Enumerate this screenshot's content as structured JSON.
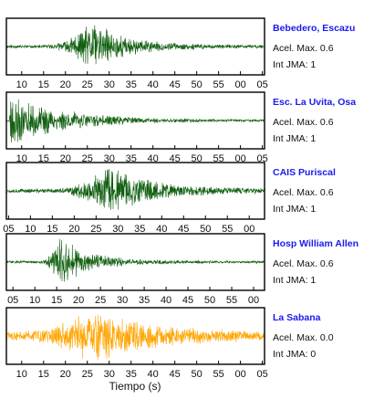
{
  "colors": {
    "trace_default": "#0f5e0f",
    "trace_highlight": "#ffa500",
    "station_name": "#1a1aee",
    "frame": "#000000"
  },
  "x_axis_label": "Tiempo (s)",
  "chart_data": [
    {
      "type": "line",
      "station": "Bebedero, Escazu",
      "accel_label": "Acel. Max. 0.6",
      "intensity_label": "Int JMA: 1",
      "tick_labels": [
        "10",
        "15",
        "20",
        "25",
        "30",
        "35",
        "40",
        "45",
        "50",
        "55",
        "00",
        "05"
      ],
      "xlim_seconds": [
        6.5,
        65.5
      ],
      "trace_color": "trace_default",
      "signal": {
        "onset": 14,
        "peak_time": 26,
        "peak_amplitude": 0.92,
        "background": 0.06,
        "decay": 8,
        "seed": 11
      }
    },
    {
      "type": "line",
      "station": "Esc. La Uvita, Osa",
      "accel_label": "Acel. Max. 0.6",
      "intensity_label": "Int JMA: 1",
      "tick_labels": [
        "10",
        "15",
        "20",
        "25",
        "30",
        "35",
        "40",
        "45",
        "50",
        "55",
        "00",
        "05"
      ],
      "xlim_seconds": [
        6.5,
        65.5
      ],
      "trace_color": "trace_default",
      "signal": {
        "onset": 7,
        "peak_time": 7.5,
        "peak_amplitude": 1.0,
        "background": 0.04,
        "decay": 12,
        "seed": 23
      }
    },
    {
      "type": "line",
      "station": "CAIS Puriscal",
      "accel_label": "Acel. Max. 0.6",
      "intensity_label": "Int JMA: 1",
      "tick_labels": [
        "05",
        "10",
        "15",
        "20",
        "25",
        "30",
        "35",
        "40",
        "45",
        "50",
        "55",
        "00"
      ],
      "xlim_seconds": [
        4.5,
        63.5
      ],
      "trace_color": "trace_default",
      "signal": {
        "onset": 14,
        "peak_time": 28,
        "peak_amplitude": 0.9,
        "background": 0.08,
        "decay": 10,
        "seed": 37
      }
    },
    {
      "type": "line",
      "station": "Hosp William Allen",
      "accel_label": "Acel. Max. 0.6",
      "intensity_label": "Int JMA: 1",
      "tick_labels": [
        "05",
        "10",
        "15",
        "20",
        "25",
        "30",
        "35",
        "40",
        "45",
        "50",
        "55",
        "00"
      ],
      "xlim_seconds": [
        3.5,
        62.5
      ],
      "trace_color": "trace_default",
      "signal": {
        "onset": 11,
        "peak_time": 15.5,
        "peak_amplitude": 0.95,
        "background": 0.05,
        "decay": 7,
        "seed": 51
      }
    },
    {
      "type": "line",
      "station": "La Sabana",
      "accel_label": "Acel. Max. 0.0",
      "intensity_label": "Int JMA: 0",
      "tick_labels": [
        "10",
        "15",
        "20",
        "25",
        "30",
        "35",
        "40",
        "45",
        "50",
        "55",
        "00",
        "05"
      ],
      "xlim_seconds": [
        6.5,
        65.5
      ],
      "trace_color": "trace_highlight",
      "signal": {
        "onset": 8,
        "peak_time": 26,
        "peak_amplitude": 0.95,
        "background": 0.18,
        "decay": 12,
        "seed": 73
      }
    }
  ]
}
